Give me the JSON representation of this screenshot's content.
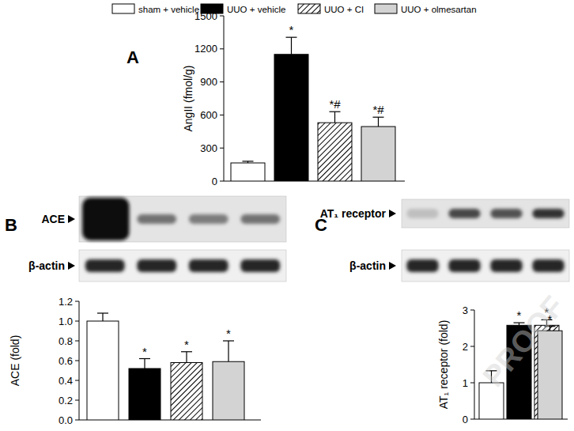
{
  "chart_data": [
    {
      "type": "bar",
      "panel": "A",
      "legend": "top",
      "tick_labels": "y",
      "y_label": "AngII (fmol/g)",
      "categories": [
        "sham + vehicle",
        "UUO + vehicle",
        "UUO + CI",
        "UUO + olmesartan"
      ],
      "colors": [
        "#ffffff",
        "#000000",
        "#000000",
        "#d3d3d3"
      ],
      "values": [
        165,
        1150,
        530,
        495
      ],
      "errors": [
        15,
        155,
        100,
        85
      ],
      "significance": [
        null,
        "*",
        "*#",
        "*#"
      ],
      "ylim": [
        0,
        1500
      ],
      "yticks": [
        0,
        300,
        600,
        900,
        1200,
        1500
      ]
    },
    {
      "type": "bar",
      "panel": "B",
      "tick_labels": "y",
      "blot_labels": [
        "ACE",
        "β-actin"
      ],
      "y_label": "ACE (fold)",
      "colors": [
        "#ffffff",
        "#000000",
        "#000000",
        "#d3d3d3"
      ],
      "values": [
        1.0,
        0.52,
        0.58,
        0.59
      ],
      "errors": [
        0.08,
        0.1,
        0.11,
        0.21
      ],
      "significance": [
        null,
        "*",
        "*",
        "*"
      ],
      "ylim": [
        0,
        1.2
      ],
      "yticks": [
        {
          "value": 0,
          "label": "0.0"
        },
        0.2,
        0.4,
        0.6,
        0.8,
        {
          "value": 1,
          "label": "1.0"
        },
        1.2
      ]
    },
    {
      "type": "bar",
      "panel": "C",
      "tick_labels": "y",
      "blot_labels": [
        "AT₁ receptor",
        "β-actin"
      ],
      "y_label": "AT₁ receptor (fold)",
      "colors": [
        "#ffffff",
        "#000000",
        "#000000",
        "#d3d3d3"
      ],
      "values": [
        1.0,
        2.58,
        2.58,
        2.43
      ],
      "errors": [
        0.33,
        0.07,
        0.15,
        0.12
      ],
      "significance": [
        null,
        "*",
        "*",
        "*"
      ],
      "ylim": [
        0,
        3
      ],
      "yticks": [
        0,
        1,
        2,
        3
      ]
    }
  ],
  "watermark": "PROOF"
}
